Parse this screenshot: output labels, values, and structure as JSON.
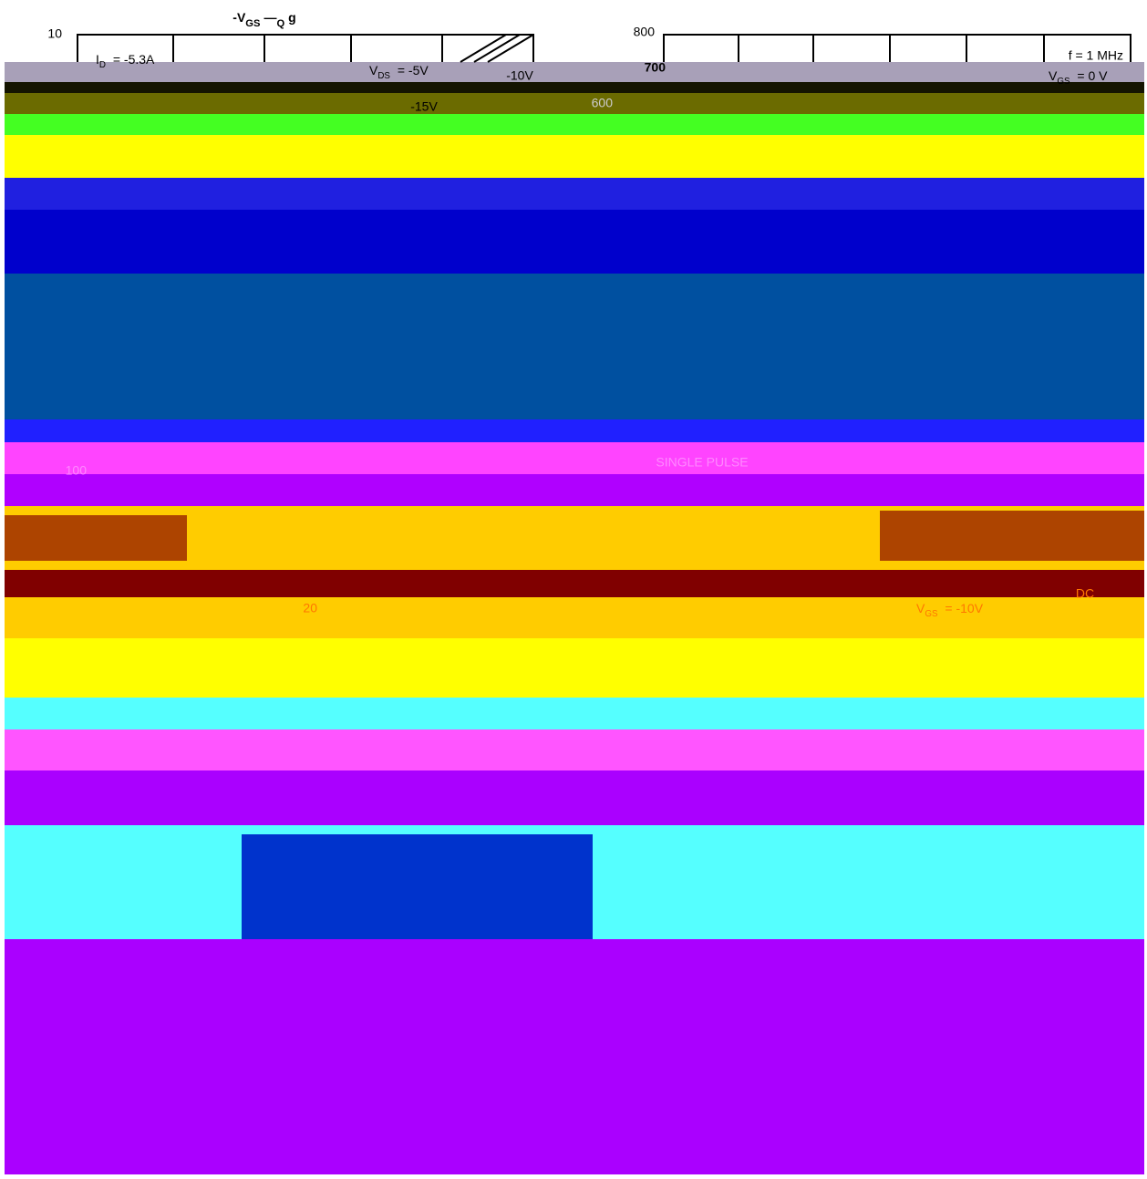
{
  "left_chart": {
    "title": [
      "-V",
      "GS",
      "—",
      "Q",
      "g"
    ],
    "y_top": 10,
    "id_label": [
      "I",
      "D",
      " = -5.3A"
    ],
    "vds_label": [
      "V",
      "DS",
      " = -5V"
    ],
    "vds_10": "-10V",
    "vds_15": "-15V"
  },
  "right_chart": {
    "y_800": 800,
    "y_700": 700,
    "y_600": 600,
    "freq": "f = 1 MHz",
    "vgs_label": [
      "V",
      "GS",
      " = 0 V"
    ]
  },
  "lower_chart": {
    "pulse": "SINGLE PULSE",
    "y_100": 100,
    "y_20": 20,
    "vgs_label": [
      "V",
      "GS",
      " = -10V"
    ],
    "dc": "DC"
  }
}
